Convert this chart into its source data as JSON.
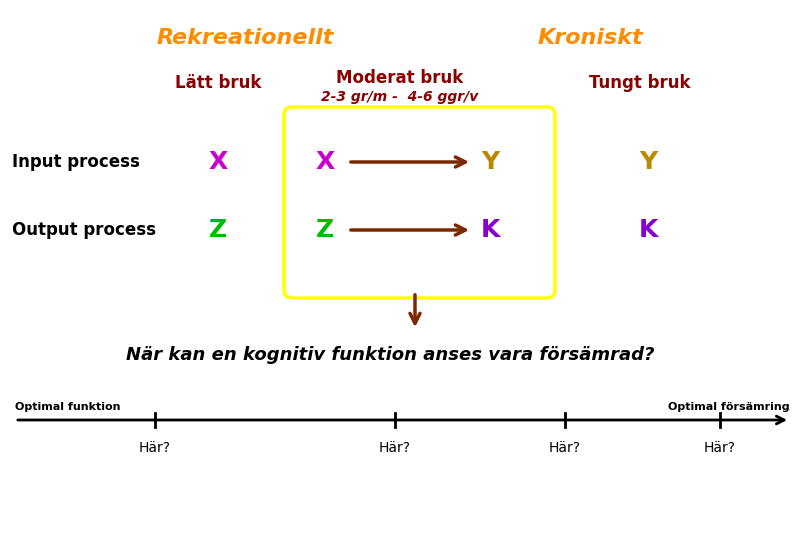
{
  "bg_color": "#ffffff",
  "title_rekr": "Rekreationellt",
  "title_kron": "Kroniskt",
  "title_color": "#FF8C00",
  "latt_bruk": "Lätt bruk",
  "moderat_bruk": "Moderat bruk",
  "moderat_sub": "2-3 gr/m -  4-6 ggr/v",
  "tungt_bruk": "Tungt bruk",
  "header_color": "#8B0000",
  "input_label": "Input process",
  "output_label": "Output process",
  "process_label_color": "#000000",
  "x_latt_color": "#CC00CC",
  "x_mod_color": "#CC00CC",
  "y_mod_color": "#BB8800",
  "y_tungt_color": "#BB8800",
  "z_latt_color": "#00BB00",
  "z_mod_color": "#00BB00",
  "k_mod_color": "#8800CC",
  "k_tungt_color": "#8800CC",
  "arrow_color": "#7B2800",
  "box_color": "#FFFF00",
  "question": "När kan en kognitiv funktion anses vara försämrad?",
  "question_color": "#000000",
  "opt_funk": "Optimal funktion",
  "opt_fors": "Optimal försämring",
  "har": "Här?",
  "axis_color": "#000000"
}
